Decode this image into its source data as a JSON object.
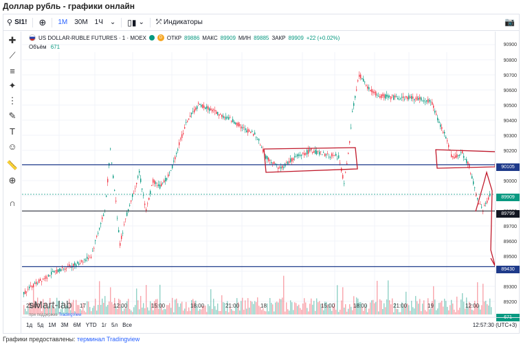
{
  "page_title": "Доллар рубль - графики онлайн",
  "toolbar": {
    "symbol": "SI1!",
    "intervals": [
      "1М",
      "30М",
      "1Ч"
    ],
    "indicators_label": "Индикаторы"
  },
  "left_tools": [
    "crosshair-icon",
    "trendline-icon",
    "fib-icon",
    "pattern-icon",
    "forecast-icon",
    "brush-icon",
    "text-icon",
    "emoji-icon",
    "ruler-icon",
    "zoom-icon",
    "magnet-icon"
  ],
  "legend": {
    "title": "US DOLLAR-RUBLE FUTURES · 1 · MOEX",
    "open_label": "ОТКР",
    "open": "89886",
    "high_label": "МАКС",
    "high": "89909",
    "low_label": "МИН",
    "low": "89885",
    "close_label": "ЗАКР",
    "close": "89909",
    "change": "+22 (+0.02%)",
    "badge": "D"
  },
  "volume_legend": {
    "label": "Объём",
    "value": "671"
  },
  "watermark": {
    "title": "sMart-lab",
    "subtitle_prefix": "при поддержке",
    "subtitle_brand": "TradingView"
  },
  "price_scale": {
    "ticks": [
      "90900",
      "90800",
      "90700",
      "90600",
      "90500",
      "90400",
      "90300",
      "90200",
      "90000",
      "89800",
      "89700",
      "89600",
      "89500",
      "89300",
      "89200",
      "89100"
    ],
    "tags": [
      {
        "label": "90105",
        "color": "#1e3a8a"
      },
      {
        "label": "89909",
        "color": "#089981"
      },
      {
        "label": "89799",
        "color": "#131722"
      },
      {
        "label": "89430",
        "color": "#1e3a8a"
      },
      {
        "label": "671",
        "color": "#089981"
      }
    ]
  },
  "time_axis": [
    "21:00",
    "17",
    "12:00",
    "15:00",
    "18:00",
    "21:00",
    "18",
    "15:00",
    "18:00",
    "21:00",
    "19",
    "12:00"
  ],
  "bottom_bar": {
    "ranges": [
      "1д",
      "5д",
      "1М",
      "3М",
      "6М",
      "YTD",
      "1г",
      "5л",
      "Все"
    ],
    "clock": "12:57:30 (UTC+3)"
  },
  "footer": {
    "prefix": "Графики предоставлены:",
    "link": "терминал Tradingview"
  },
  "colors": {
    "up": "#089981",
    "down": "#f23645",
    "hline": "#1e3a8a",
    "annotation": "#c0182a"
  }
}
